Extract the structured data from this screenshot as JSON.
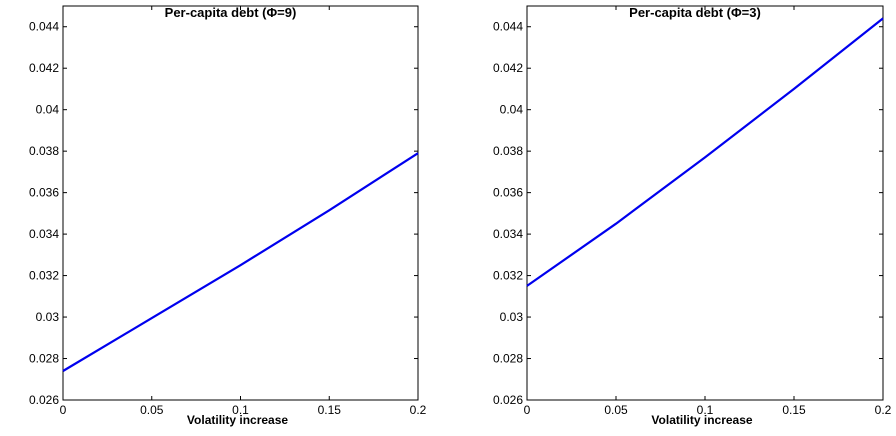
{
  "chart_data": [
    {
      "type": "line",
      "title": "Per-capita debt (Φ=9)",
      "xlabel": "Volatility increase",
      "ylabel": "",
      "xlim": [
        0,
        0.2
      ],
      "ylim": [
        0.026,
        0.045
      ],
      "x_ticks": [
        "0",
        "0.05",
        "0.1",
        "0.15",
        "0.2"
      ],
      "y_ticks": [
        "0.026",
        "0.028",
        "0.03",
        "0.032",
        "0.034",
        "0.036",
        "0.038",
        "0.04",
        "0.042",
        "0.044"
      ],
      "grid": false,
      "line_color": "#0000ee",
      "series": [
        {
          "x": [
            0,
            0.05,
            0.1,
            0.15,
            0.2
          ],
          "y": [
            0.0274,
            0.02995,
            0.0325,
            0.03515,
            0.0379
          ]
        }
      ]
    },
    {
      "type": "line",
      "title": "Per-capita debt (Φ=3)",
      "xlabel": "Volatility increase",
      "ylabel": "",
      "xlim": [
        0,
        0.2
      ],
      "ylim": [
        0.026,
        0.045
      ],
      "x_ticks": [
        "0",
        "0.05",
        "0.1",
        "0.15",
        "0.2"
      ],
      "y_ticks": [
        "0.026",
        "0.028",
        "0.03",
        "0.032",
        "0.034",
        "0.036",
        "0.038",
        "0.04",
        "0.042",
        "0.044"
      ],
      "grid": false,
      "line_color": "#0000ee",
      "series": [
        {
          "x": [
            0,
            0.05,
            0.1,
            0.15,
            0.2
          ],
          "y": [
            0.0315,
            0.0345,
            0.0377,
            0.041,
            0.0444
          ]
        }
      ]
    }
  ]
}
